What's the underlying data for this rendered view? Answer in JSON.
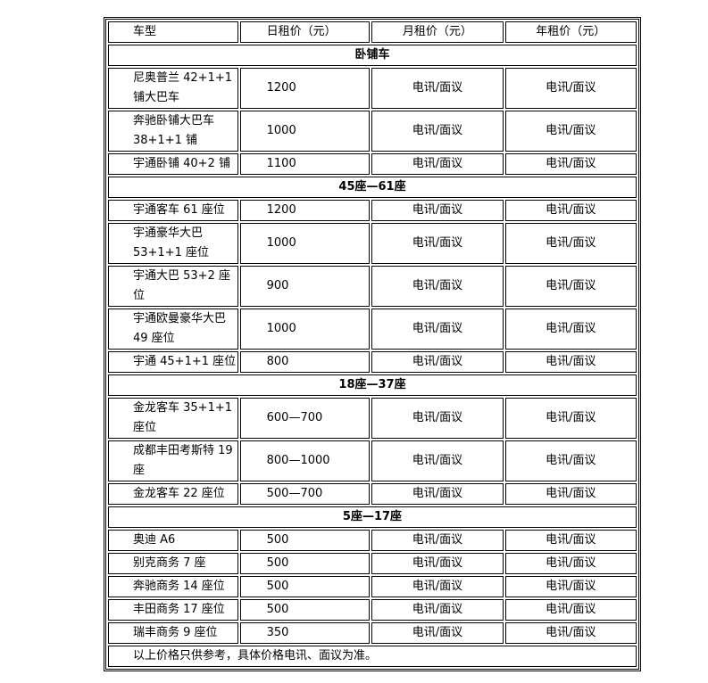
{
  "header": [
    "车型",
    "日租价（元）",
    "月租价（元）",
    "年租价（元）"
  ],
  "sections": [
    {
      "title": "卧铺车",
      "rows": [
        [
          "尼奥普兰 42+1+1 铺大巴车",
          "1200",
          "电讯/面议",
          "电讯/面议"
        ],
        [
          "奔驰卧铺大巴车 38+1+1 铺",
          "1000",
          "电讯/面议",
          "电讯/面议"
        ],
        [
          "宇通卧铺 40+2 铺",
          "1100",
          "电讯/面议",
          "电讯/面议"
        ]
      ]
    },
    {
      "title": "45座—61座",
      "rows": [
        [
          "宇通客车 61 座位",
          "1200",
          "电讯/面议",
          "电讯/面议"
        ],
        [
          "宇通豪华大巴 53+1+1 座位",
          "1000",
          "电讯/面议",
          "电讯/面议"
        ],
        [
          "宇通大巴 53+2 座位",
          "900",
          "电讯/面议",
          "电讯/面议"
        ],
        [
          "宇通欧曼豪华大巴 49 座位",
          "1000",
          "电讯/面议",
          "电讯/面议"
        ],
        [
          "宇通 45+1+1 座位",
          "800",
          "电讯/面议",
          "电讯/面议"
        ]
      ]
    },
    {
      "title": "18座—37座",
      "rows": [
        [
          "金龙客车 35+1+1 座位",
          "600—700",
          "电讯/面议",
          "电讯/面议"
        ],
        [
          "成都丰田考斯特 19 座",
          "800—1000",
          "电讯/面议",
          "电讯/面议"
        ],
        [
          "金龙客车 22 座位",
          "500—700",
          "电讯/面议",
          "电讯/面议"
        ]
      ]
    },
    {
      "title": "5座—17座",
      "rows": [
        [
          "奥迪 A6",
          "500",
          "电讯/面议",
          "电讯/面议"
        ],
        [
          "别克商务 7 座",
          "500",
          "电讯/面议",
          "电讯/面议"
        ],
        [
          "奔驰商务 14 座位",
          "500",
          "电讯/面议",
          "电讯/面议"
        ],
        [
          "丰田商务 17 座位",
          "500",
          "电讯/面议",
          "电讯/面议"
        ],
        [
          "瑞丰商务 9 座位",
          "350",
          "电讯/面议",
          "电讯/面议"
        ]
      ]
    }
  ],
  "note": "以上价格只供参考，具体价格电讯、面议为准。"
}
